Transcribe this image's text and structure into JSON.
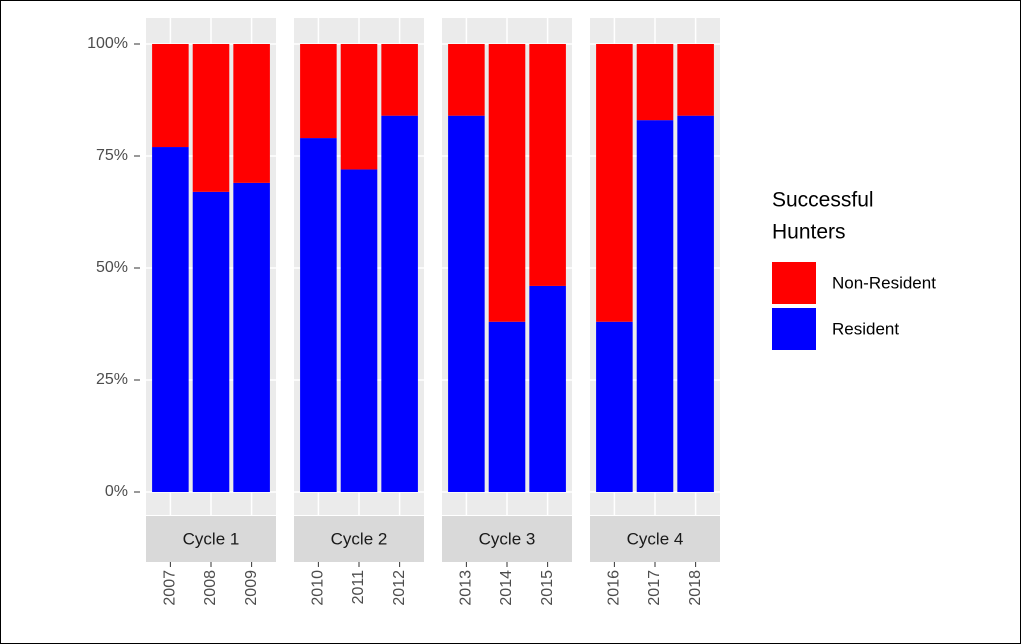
{
  "chart_data": {
    "type": "bar",
    "stacked": true,
    "legend_title": [
      "Successful",
      "Hunters"
    ],
    "legend": "right",
    "ylim": [
      0,
      100
    ],
    "yticks": [
      {
        "value": 0,
        "label": "0%"
      },
      {
        "value": 25,
        "label": "25%"
      },
      {
        "value": 50,
        "label": "50%"
      },
      {
        "value": 75,
        "label": "75%"
      },
      {
        "value": 100,
        "label": "100%"
      }
    ],
    "grid": true,
    "facets": [
      {
        "label": "Cycle 1",
        "categories": [
          "2007",
          "2008",
          "2009"
        ]
      },
      {
        "label": "Cycle 2",
        "categories": [
          "2010",
          "2011",
          "2012"
        ]
      },
      {
        "label": "Cycle 3",
        "categories": [
          "2013",
          "2014",
          "2015"
        ]
      },
      {
        "label": "Cycle 4",
        "categories": [
          "2016",
          "2017",
          "2018"
        ]
      }
    ],
    "series": [
      {
        "name": "Non-Resident",
        "color": "#ff0000",
        "values": [
          [
            23,
            33,
            31
          ],
          [
            21,
            28,
            16
          ],
          [
            16,
            62,
            54
          ],
          [
            62,
            17,
            16
          ]
        ]
      },
      {
        "name": "Resident",
        "color": "#0000ff",
        "values": [
          [
            77,
            67,
            69
          ],
          [
            79,
            72,
            84
          ],
          [
            84,
            38,
            46
          ],
          [
            38,
            83,
            84
          ]
        ]
      }
    ]
  }
}
